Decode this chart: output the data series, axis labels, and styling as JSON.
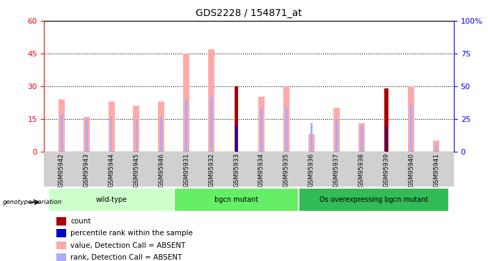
{
  "title": "GDS2228 / 154871_at",
  "samples": [
    "GSM95942",
    "GSM95943",
    "GSM95944",
    "GSM95945",
    "GSM95946",
    "GSM95931",
    "GSM95932",
    "GSM95933",
    "GSM95934",
    "GSM95935",
    "GSM95936",
    "GSM95937",
    "GSM95938",
    "GSM95939",
    "GSM95940",
    "GSM95941"
  ],
  "value_absent": [
    24,
    16,
    23,
    21,
    23,
    45,
    47,
    0,
    25,
    30,
    8,
    20,
    13,
    0,
    30,
    5
  ],
  "rank_absent": [
    17,
    15,
    16,
    15,
    16,
    24,
    25,
    0,
    20,
    20,
    13,
    15,
    12,
    0,
    22,
    3
  ],
  "count_val": [
    0,
    0,
    0,
    0,
    0,
    0,
    0,
    30,
    0,
    0,
    0,
    0,
    0,
    29,
    0,
    0
  ],
  "percentile_val": [
    0,
    0,
    0,
    0,
    0,
    0,
    0,
    20,
    0,
    0,
    0,
    0,
    0,
    19,
    0,
    0
  ],
  "group_defs": [
    [
      0,
      4,
      "wild-type",
      "#ccffcc"
    ],
    [
      5,
      9,
      "bgcn mutant",
      "#66ee66"
    ],
    [
      10,
      15,
      "Os overexpressing bgcn mutant",
      "#33bb55"
    ]
  ],
  "ylim_left": [
    0,
    60
  ],
  "ylim_right": [
    0,
    100
  ],
  "yticks_left": [
    0,
    15,
    30,
    45,
    60
  ],
  "ytick_labels_right": [
    "0",
    "25",
    "50",
    "75",
    "100%"
  ],
  "yticks_right": [
    0,
    25,
    50,
    75,
    100
  ],
  "color_value_absent": "#ffaaaa",
  "color_rank_absent": "#aaaaff",
  "color_count": "#aa0000",
  "color_percentile": "#0000cc",
  "background_color": "#ffffff"
}
